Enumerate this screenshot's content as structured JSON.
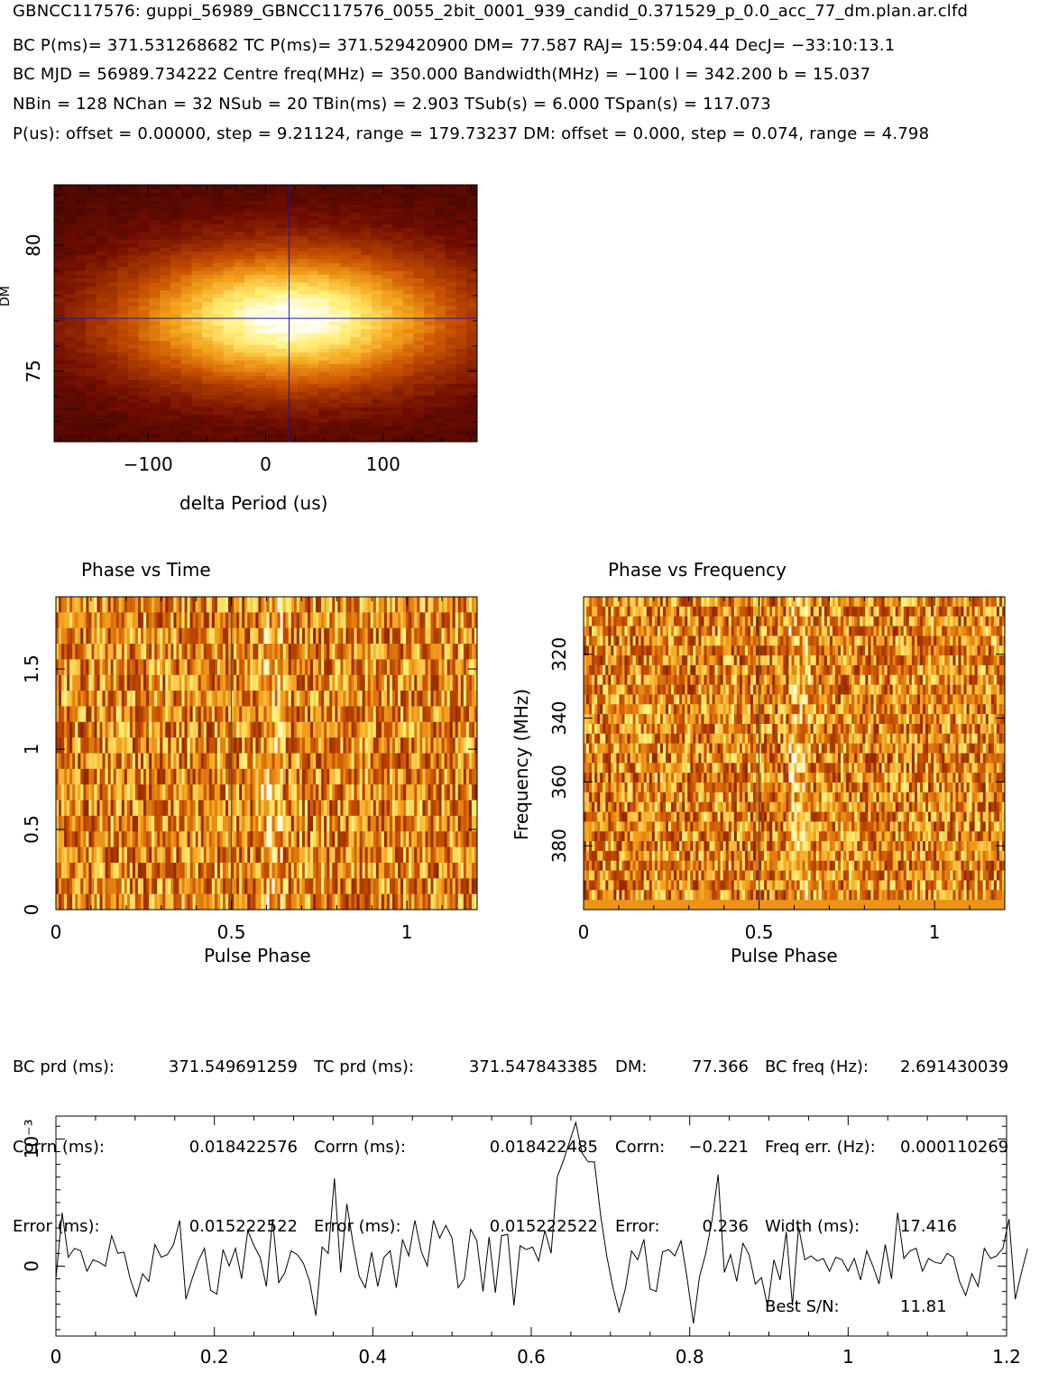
{
  "header": {
    "line1": "GBNCC117576: guppi_56989_GBNCC117576_0055_2bit_0001_939_candid_0.371529_p_0.0_acc_77_dm.plan.ar.clfd",
    "line2": "BC P(ms)= 371.531268682 TC P(ms)= 371.529420900 DM= 77.587 RAJ= 15:59:04.44 DecJ= −33:10:13.1",
    "line3": "BC MJD = 56989.734222 Centre freq(MHz) = 350.000 Bandwidth(MHz) = −100 l = 342.200 b = 15.037",
    "line4": "NBin = 128 NChan = 32 NSub = 20 TBin(ms) = 2.903 TSub(s) = 6.000 TSpan(s) = 117.073",
    "line5": "P(us): offset = 0.00000, step = 9.21124, range = 179.73237 DM: offset = 0.000, step = 0.074, range = 4.798"
  },
  "stats": {
    "col1_labels": [
      "BC prd (ms):",
      "Corrn (ms):",
      "Error (ms):"
    ],
    "col1_values": [
      "371.549691259",
      "0.018422576",
      "0.015222522"
    ],
    "col2_labels": [
      "TC prd (ms):",
      "Corrn (ms):",
      "Error (ms):"
    ],
    "col2_values": [
      "371.547843385",
      "0.018422485",
      "0.015222522"
    ],
    "col3_labels": [
      "DM:",
      "Corrn:",
      "Error:"
    ],
    "col3_values": [
      "77.366",
      "−0.221",
      "0.236"
    ],
    "col4_labels": [
      "BC freq (Hz):",
      "Freq err. (Hz):",
      "Width (ms):",
      "Best S/N:"
    ],
    "col4_values": [
      "2.691430039",
      "0.000110269",
      "17.416",
      "11.81"
    ]
  },
  "chart_data": [
    {
      "type": "heatmap",
      "name": "dm-period",
      "xlabel": "delta Period (us)",
      "ylabel": "DM",
      "xlim": [
        -180,
        180
      ],
      "ylim": [
        72.2,
        82.4
      ],
      "xticks": [
        -100,
        0,
        100
      ],
      "xtick_labels": [
        "−100",
        "0",
        "100"
      ],
      "yticks": [
        75,
        80
      ],
      "ytick_labels": [
        "75",
        "80"
      ],
      "peak": {
        "x": 20,
        "y": 77.1
      },
      "colormap": [
        "#000000",
        "#6b0b00",
        "#c64a00",
        "#f0a020",
        "#ffff90",
        "#ffffff"
      ],
      "line_color": "#1a1aa0"
    },
    {
      "type": "heatmap",
      "name": "phase-vs-time",
      "title": "Phase vs Time",
      "xlabel": "Pulse Phase",
      "xlim": [
        0,
        1.2
      ],
      "ylim": [
        0,
        1.95
      ],
      "xticks": [
        0,
        0.5,
        1
      ],
      "xtick_labels": [
        "0",
        "0.5",
        "1"
      ],
      "yticks": [
        0,
        0.5,
        1,
        1.5
      ],
      "ytick_labels": [
        "0",
        "0.5",
        "1",
        "1.5"
      ],
      "rows": 20,
      "cols": 154,
      "marker_phase": 0.5
    },
    {
      "type": "heatmap",
      "name": "phase-vs-frequency",
      "title": "Phase vs Frequency",
      "xlabel": "Pulse Phase",
      "ylabel": "Frequency (MHz)",
      "xlim": [
        0,
        1.2
      ],
      "ylim": [
        302,
        400
      ],
      "yreversed": true,
      "xticks": [
        0,
        0.5,
        1
      ],
      "xtick_labels": [
        "0",
        "0.5",
        "1"
      ],
      "yticks": [
        320,
        340,
        360,
        380
      ],
      "ytick_labels": [
        "320",
        "340",
        "360",
        "380"
      ],
      "rows": 32,
      "cols": 154,
      "marker_phase": 0.5
    },
    {
      "type": "line",
      "name": "pulse-profile",
      "ylabel": "10⁻³",
      "xlim": [
        0,
        1.2
      ],
      "ylim": [
        -0.55,
        1.18
      ],
      "xticks": [
        0,
        0.2,
        0.4,
        0.6,
        0.8,
        1,
        1.2
      ],
      "xtick_labels": [
        "0",
        "0.2",
        "0.4",
        "0.6",
        "0.8",
        "1",
        "1.2"
      ],
      "yticks": [
        0,
        1
      ],
      "ytick_labels": [
        "0",
        "10⁻³"
      ],
      "x_step": 0.0078125,
      "values": [
        -0.1,
        0.42,
        0.07,
        0.14,
        0.12,
        -0.04,
        0.05,
        0.03,
        0.0,
        0.24,
        0.1,
        0.11,
        -0.1,
        -0.24,
        -0.06,
        -0.12,
        0.17,
        0.07,
        0.09,
        0.17,
        0.36,
        -0.26,
        -0.1,
        0.04,
        0.14,
        -0.19,
        -0.22,
        0.13,
        0.0,
        0.14,
        -0.1,
        0.28,
        0.16,
        0.07,
        -0.16,
        0.37,
        -0.13,
        -0.05,
        0.12,
        0.09,
        0.02,
        -0.12,
        -0.39,
        0.15,
        0.1,
        0.69,
        -0.05,
        0.49,
        0.18,
        -0.08,
        -0.17,
        0.11,
        -0.16,
        0.07,
        0.12,
        -0.17,
        0.21,
        0.08,
        0.36,
        0.12,
        0.0,
        0.36,
        0.22,
        0.32,
        0.22,
        -0.17,
        -0.1,
        0.29,
        0.2,
        -0.2,
        0.23,
        -0.21,
        0.24,
        0.25,
        -0.31,
        0.16,
        0.13,
        0.15,
        0.04,
        0.28,
        0.1,
        0.7,
        0.83,
        0.98,
        1.13,
        0.89,
        0.82,
        0.82,
        0.4,
        0.08,
        -0.17,
        -0.36,
        -0.18,
        0.12,
        0.05,
        0.21,
        -0.18,
        -0.2,
        0.11,
        0.13,
        0.08,
        0.2,
        -0.1,
        -0.45,
        -0.08,
        0.1,
        0.36,
        0.72,
        -0.05,
        0.09,
        -0.12,
        0.18,
        0.09,
        -0.14,
        -0.09,
        -0.32,
        0.05,
        -0.11,
        0.27,
        -0.31,
        0.31,
        0.05,
        0.08,
        0.04,
        0.06,
        -0.04,
        0.07,
        0.05,
        -0.04,
        0.06,
        -0.11,
        0.12,
        0.0,
        -0.14,
        0.17,
        -0.1,
        0.42,
        0.06,
        0.12,
        0.14,
        -0.04,
        0.06,
        0.03,
        0.02,
        0.1,
        0.07,
        -0.12,
        -0.23,
        -0.06,
        -0.16,
        0.14,
        0.06,
        0.08,
        0.14,
        0.37,
        -0.26,
        -0.05,
        0.14
      ]
    }
  ]
}
